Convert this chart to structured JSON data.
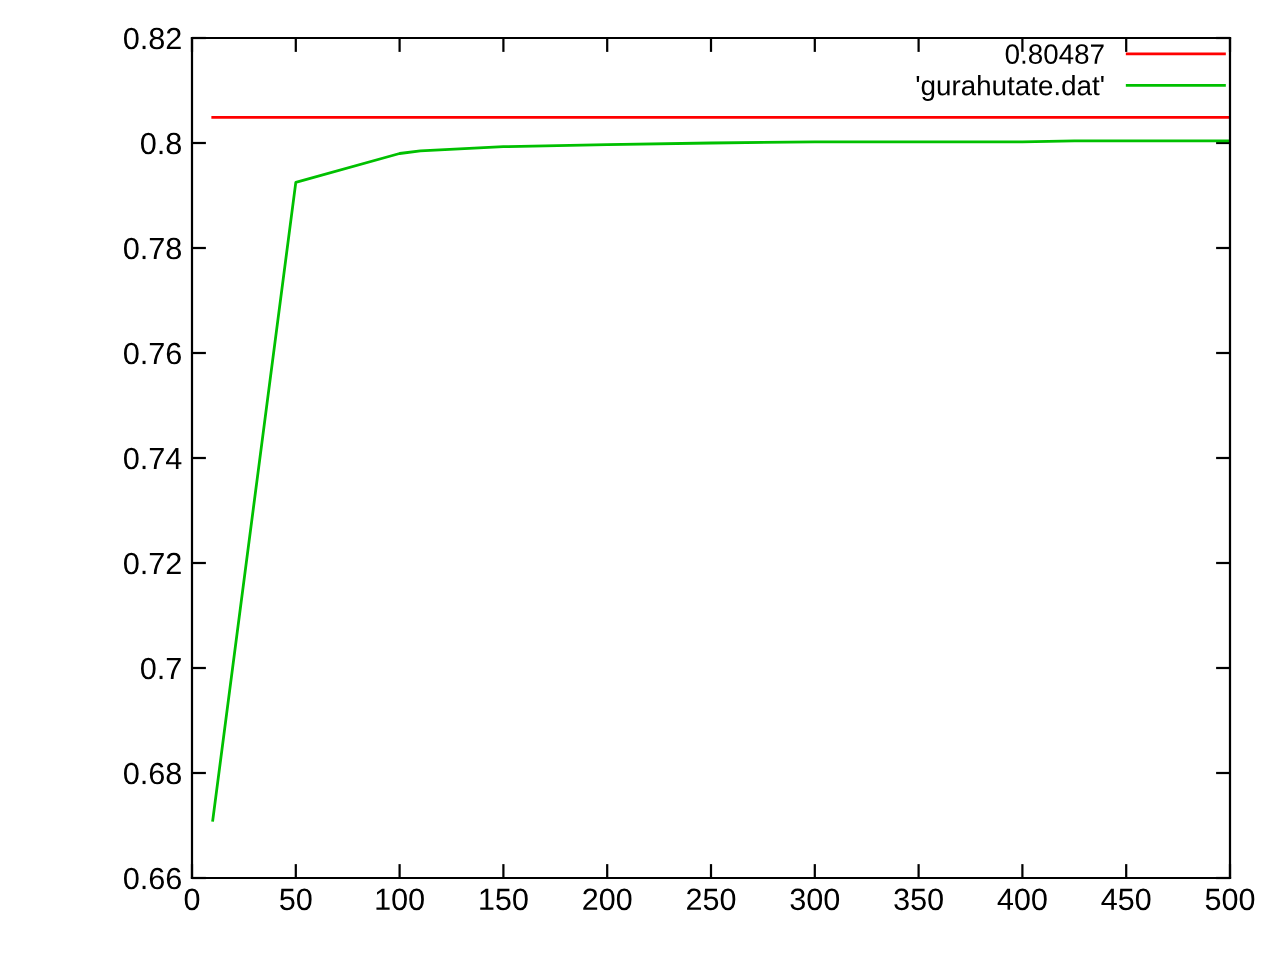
{
  "chart_data": {
    "type": "line",
    "xlim": [
      0,
      500
    ],
    "ylim": [
      0.66,
      0.82
    ],
    "xticks": [
      0,
      50,
      100,
      150,
      200,
      250,
      300,
      350,
      400,
      450,
      500
    ],
    "yticks": [
      0.66,
      0.68,
      0.7,
      0.72,
      0.74,
      0.76,
      0.78,
      0.8,
      0.82
    ],
    "grid": false,
    "legend": "top right",
    "marker": "none",
    "line_style": "solid",
    "series": [
      {
        "name": "0.80487",
        "color": "#ff0000",
        "x": [
          10,
          500
        ],
        "values": [
          0.80487,
          0.80487
        ]
      },
      {
        "name": "'gurahutate.dat'",
        "color": "#00c000",
        "x": [
          10,
          50,
          100,
          110,
          150,
          200,
          250,
          300,
          400,
          425,
          500
        ],
        "values": [
          0.671,
          0.7925,
          0.798,
          0.7985,
          0.7993,
          0.7997,
          0.8,
          0.8002,
          0.8002,
          0.8004,
          0.8004
        ]
      }
    ]
  }
}
